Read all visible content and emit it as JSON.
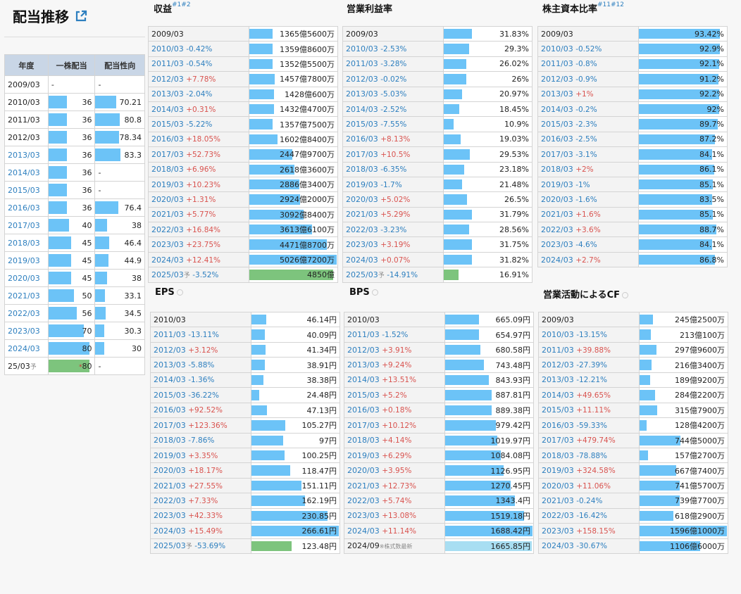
{
  "page": {
    "title": "配当推移",
    "link_icon": "external-link-icon"
  },
  "dividend": {
    "headers": [
      "年度",
      "一株配当",
      "配当性向"
    ],
    "rows": [
      {
        "year": "2009/03",
        "year_blue": false,
        "dps": "-",
        "dps_bar": 0,
        "payout": "-",
        "payout_bar": 0
      },
      {
        "year": "2010/03",
        "year_blue": false,
        "dps": "36",
        "dps_bar": 0.43,
        "payout": "70.21",
        "payout_bar": 0.84
      },
      {
        "year": "2011/03",
        "year_blue": false,
        "dps": "36",
        "dps_bar": 0.43,
        "payout": "80.8",
        "payout_bar": 0.97
      },
      {
        "year": "2012/03",
        "year_blue": false,
        "dps": "36",
        "dps_bar": 0.43,
        "payout": "78.34",
        "payout_bar": 0.94
      },
      {
        "year": "2013/03",
        "year_blue": true,
        "dps": "36",
        "dps_bar": 0.43,
        "payout": "83.3",
        "payout_bar": 1.0
      },
      {
        "year": "2014/03",
        "year_blue": true,
        "dps": "36",
        "dps_bar": 0.43,
        "payout": "-",
        "payout_bar": 0
      },
      {
        "year": "2015/03",
        "year_blue": true,
        "dps": "36",
        "dps_bar": 0.43,
        "payout": "-",
        "payout_bar": 0
      },
      {
        "year": "2016/03",
        "year_blue": true,
        "dps": "36",
        "dps_bar": 0.43,
        "payout": "76.4",
        "payout_bar": 0.92
      },
      {
        "year": "2017/03",
        "year_blue": true,
        "dps": "40",
        "dps_bar": 0.48,
        "payout": "38",
        "payout_bar": 0.46
      },
      {
        "year": "2018/03",
        "year_blue": true,
        "dps": "45",
        "dps_bar": 0.54,
        "payout": "46.4",
        "payout_bar": 0.56
      },
      {
        "year": "2019/03",
        "year_blue": true,
        "dps": "45",
        "dps_bar": 0.54,
        "payout": "44.9",
        "payout_bar": 0.54
      },
      {
        "year": "2020/03",
        "year_blue": true,
        "dps": "45",
        "dps_bar": 0.54,
        "payout": "38",
        "payout_bar": 0.46
      },
      {
        "year": "2021/03",
        "year_blue": true,
        "dps": "50",
        "dps_bar": 0.6,
        "payout": "33.1",
        "payout_bar": 0.4
      },
      {
        "year": "2022/03",
        "year_blue": true,
        "dps": "56",
        "dps_bar": 0.67,
        "payout": "34.5",
        "payout_bar": 0.41
      },
      {
        "year": "2023/03",
        "year_blue": true,
        "dps": "70",
        "dps_bar": 0.84,
        "payout": "30.3",
        "payout_bar": 0.36
      },
      {
        "year": "2024/03",
        "year_blue": true,
        "dps": "80",
        "dps_bar": 0.96,
        "payout": "30",
        "payout_bar": 0.36
      },
      {
        "year": "25/03",
        "year_blue": false,
        "forecast": "予",
        "dps": "80",
        "dps_mark": "*",
        "dps_bar": 0.96,
        "dps_green": true,
        "payout": "-",
        "payout_bar": 0
      }
    ]
  },
  "panels": [
    {
      "id": "revenue",
      "title": "収益",
      "sup": "#1#2",
      "info": false,
      "rows": [
        {
          "year": "2009/03",
          "chg": "",
          "dir": "",
          "val": "1365億5600万",
          "bar": 0.27
        },
        {
          "year": "2010/03",
          "chg": "-0.42%",
          "dir": "down",
          "val": "1359億8600万",
          "bar": 0.27
        },
        {
          "year": "2011/03",
          "chg": "-0.54%",
          "dir": "down",
          "val": "1352億5500万",
          "bar": 0.27
        },
        {
          "year": "2012/03",
          "chg": "+7.78%",
          "dir": "up",
          "val": "1457億7800万",
          "bar": 0.29
        },
        {
          "year": "2013/03",
          "chg": "-2.04%",
          "dir": "down",
          "val": "1428億600万",
          "bar": 0.28
        },
        {
          "year": "2014/03",
          "chg": "+0.31%",
          "dir": "up",
          "val": "1432億4700万",
          "bar": 0.28
        },
        {
          "year": "2015/03",
          "chg": "-5.22%",
          "dir": "down",
          "val": "1357億7500万",
          "bar": 0.27
        },
        {
          "year": "2016/03",
          "chg": "+18.05%",
          "dir": "up",
          "val": "1602億8400万",
          "bar": 0.32
        },
        {
          "year": "2017/03",
          "chg": "+52.73%",
          "dir": "up",
          "val": "2447億9700万",
          "bar": 0.49
        },
        {
          "year": "2018/03",
          "chg": "+6.96%",
          "dir": "up",
          "val": "2618億3600万",
          "bar": 0.52
        },
        {
          "year": "2019/03",
          "chg": "+10.23%",
          "dir": "up",
          "val": "2886億3400万",
          "bar": 0.57
        },
        {
          "year": "2020/03",
          "chg": "+1.31%",
          "dir": "up",
          "val": "2924億2000万",
          "bar": 0.58
        },
        {
          "year": "2021/03",
          "chg": "+5.77%",
          "dir": "up",
          "val": "3092億8400万",
          "bar": 0.62
        },
        {
          "year": "2022/03",
          "chg": "+16.84%",
          "dir": "up",
          "val": "3613億6100万",
          "bar": 0.72
        },
        {
          "year": "2023/03",
          "chg": "+23.75%",
          "dir": "up",
          "val": "4471億8700万",
          "bar": 0.89
        },
        {
          "year": "2024/03",
          "chg": "+12.41%",
          "dir": "up",
          "val": "5026億7200万",
          "bar": 1.0
        },
        {
          "year": "2025/03",
          "forecast": "予",
          "chg": "-3.52%",
          "dir": "down",
          "val": "4850億",
          "bar": 0.96,
          "green": true
        }
      ]
    },
    {
      "id": "op-margin",
      "title": "営業利益率",
      "sup": "",
      "info": false,
      "rows": [
        {
          "year": "2009/03",
          "chg": "",
          "dir": "",
          "val": "31.83%",
          "bar": 0.32
        },
        {
          "year": "2010/03",
          "chg": "-2.53%",
          "dir": "down",
          "val": "29.3%",
          "bar": 0.29
        },
        {
          "year": "2011/03",
          "chg": "-3.28%",
          "dir": "down",
          "val": "26.02%",
          "bar": 0.26
        },
        {
          "year": "2012/03",
          "chg": "-0.02%",
          "dir": "down",
          "val": "26%",
          "bar": 0.26
        },
        {
          "year": "2013/03",
          "chg": "-5.03%",
          "dir": "down",
          "val": "20.97%",
          "bar": 0.21
        },
        {
          "year": "2014/03",
          "chg": "-2.52%",
          "dir": "down",
          "val": "18.45%",
          "bar": 0.18
        },
        {
          "year": "2015/03",
          "chg": "-7.55%",
          "dir": "down",
          "val": "10.9%",
          "bar": 0.11
        },
        {
          "year": "2016/03",
          "chg": "+8.13%",
          "dir": "up",
          "val": "19.03%",
          "bar": 0.19
        },
        {
          "year": "2017/03",
          "chg": "+10.5%",
          "dir": "up",
          "val": "29.53%",
          "bar": 0.3
        },
        {
          "year": "2018/03",
          "chg": "-6.35%",
          "dir": "down",
          "val": "23.18%",
          "bar": 0.23
        },
        {
          "year": "2019/03",
          "chg": "-1.7%",
          "dir": "down",
          "val": "21.48%",
          "bar": 0.21
        },
        {
          "year": "2020/03",
          "chg": "+5.02%",
          "dir": "up",
          "val": "26.5%",
          "bar": 0.27
        },
        {
          "year": "2021/03",
          "chg": "+5.29%",
          "dir": "up",
          "val": "31.79%",
          "bar": 0.32
        },
        {
          "year": "2022/03",
          "chg": "-3.23%",
          "dir": "down",
          "val": "28.56%",
          "bar": 0.29
        },
        {
          "year": "2023/03",
          "chg": "+3.19%",
          "dir": "up",
          "val": "31.75%",
          "bar": 0.32
        },
        {
          "year": "2024/03",
          "chg": "+0.07%",
          "dir": "up",
          "val": "31.82%",
          "bar": 0.32
        },
        {
          "year": "2025/03",
          "forecast": "予",
          "chg": "-14.91%",
          "dir": "down",
          "val": "16.91%",
          "bar": 0.17,
          "green": true
        }
      ]
    },
    {
      "id": "equity-ratio",
      "title": "株主資本比率",
      "sup": "#11#12",
      "info": false,
      "rows": [
        {
          "year": "2009/03",
          "chg": "",
          "dir": "",
          "val": "93.42%",
          "bar": 0.93
        },
        {
          "year": "2010/03",
          "chg": "-0.52%",
          "dir": "down",
          "val": "92.9%",
          "bar": 0.93
        },
        {
          "year": "2011/03",
          "chg": "-0.8%",
          "dir": "down",
          "val": "92.1%",
          "bar": 0.92
        },
        {
          "year": "2012/03",
          "chg": "-0.9%",
          "dir": "down",
          "val": "91.2%",
          "bar": 0.91
        },
        {
          "year": "2013/03",
          "chg": "+1%",
          "dir": "up",
          "val": "92.2%",
          "bar": 0.92
        },
        {
          "year": "2014/03",
          "chg": "-0.2%",
          "dir": "down",
          "val": "92%",
          "bar": 0.92
        },
        {
          "year": "2015/03",
          "chg": "-2.3%",
          "dir": "down",
          "val": "89.7%",
          "bar": 0.9
        },
        {
          "year": "2016/03",
          "chg": "-2.5%",
          "dir": "down",
          "val": "87.2%",
          "bar": 0.87
        },
        {
          "year": "2017/03",
          "chg": "-3.1%",
          "dir": "down",
          "val": "84.1%",
          "bar": 0.84
        },
        {
          "year": "2018/03",
          "chg": "+2%",
          "dir": "up",
          "val": "86.1%",
          "bar": 0.86
        },
        {
          "year": "2019/03",
          "chg": "-1%",
          "dir": "down",
          "val": "85.1%",
          "bar": 0.85
        },
        {
          "year": "2020/03",
          "chg": "-1.6%",
          "dir": "down",
          "val": "83.5%",
          "bar": 0.84
        },
        {
          "year": "2021/03",
          "chg": "+1.6%",
          "dir": "up",
          "val": "85.1%",
          "bar": 0.85
        },
        {
          "year": "2022/03",
          "chg": "+3.6%",
          "dir": "up",
          "val": "88.7%",
          "bar": 0.89
        },
        {
          "year": "2023/03",
          "chg": "-4.6%",
          "dir": "down",
          "val": "84.1%",
          "bar": 0.84
        },
        {
          "year": "2024/03",
          "chg": "+2.7%",
          "dir": "up",
          "val": "86.8%",
          "bar": 0.87
        }
      ]
    },
    {
      "id": "eps",
      "title": "EPS",
      "sup": "",
      "info": true,
      "rows": [
        {
          "year": "2010/03",
          "chg": "",
          "dir": "",
          "val": "46.14円",
          "bar": 0.17
        },
        {
          "year": "2011/03",
          "chg": "-13.11%",
          "dir": "down",
          "val": "40.09円",
          "bar": 0.15
        },
        {
          "year": "2012/03",
          "chg": "+3.12%",
          "dir": "up",
          "val": "41.34円",
          "bar": 0.16
        },
        {
          "year": "2013/03",
          "chg": "-5.88%",
          "dir": "down",
          "val": "38.91円",
          "bar": 0.15
        },
        {
          "year": "2014/03",
          "chg": "-1.36%",
          "dir": "down",
          "val": "38.38円",
          "bar": 0.14
        },
        {
          "year": "2015/03",
          "chg": "-36.22%",
          "dir": "down",
          "val": "24.48円",
          "bar": 0.09
        },
        {
          "year": "2016/03",
          "chg": "+92.52%",
          "dir": "up",
          "val": "47.13円",
          "bar": 0.18
        },
        {
          "year": "2017/03",
          "chg": "+123.36%",
          "dir": "up",
          "val": "105.27円",
          "bar": 0.39
        },
        {
          "year": "2018/03",
          "chg": "-7.86%",
          "dir": "down",
          "val": "97円",
          "bar": 0.36
        },
        {
          "year": "2019/03",
          "chg": "+3.35%",
          "dir": "up",
          "val": "100.25円",
          "bar": 0.38
        },
        {
          "year": "2020/03",
          "chg": "+18.17%",
          "dir": "up",
          "val": "118.47円",
          "bar": 0.44
        },
        {
          "year": "2021/03",
          "chg": "+27.55%",
          "dir": "up",
          "val": "151.11円",
          "bar": 0.57
        },
        {
          "year": "2022/03",
          "chg": "+7.33%",
          "dir": "up",
          "val": "162.19円",
          "bar": 0.61
        },
        {
          "year": "2023/03",
          "chg": "+42.33%",
          "dir": "up",
          "val": "230.85円",
          "bar": 0.87
        },
        {
          "year": "2024/03",
          "chg": "+15.49%",
          "dir": "up",
          "val": "266.61円",
          "bar": 1.0
        },
        {
          "year": "2025/03",
          "forecast": "予",
          "chg": "-53.69%",
          "dir": "down",
          "val": "123.48円",
          "bar": 0.46,
          "green": true
        }
      ]
    },
    {
      "id": "bps",
      "title": "BPS",
      "sup": "",
      "info": true,
      "rows": [
        {
          "year": "2010/03",
          "chg": "",
          "dir": "",
          "val": "665.09円",
          "bar": 0.39
        },
        {
          "year": "2011/03",
          "chg": "-1.52%",
          "dir": "down",
          "val": "654.97円",
          "bar": 0.39
        },
        {
          "year": "2012/03",
          "chg": "+3.91%",
          "dir": "up",
          "val": "680.58円",
          "bar": 0.4
        },
        {
          "year": "2013/03",
          "chg": "+9.24%",
          "dir": "up",
          "val": "743.48円",
          "bar": 0.44
        },
        {
          "year": "2014/03",
          "chg": "+13.51%",
          "dir": "up",
          "val": "843.93円",
          "bar": 0.5
        },
        {
          "year": "2015/03",
          "chg": "+5.2%",
          "dir": "up",
          "val": "887.81円",
          "bar": 0.53
        },
        {
          "year": "2016/03",
          "chg": "+0.18%",
          "dir": "up",
          "val": "889.38円",
          "bar": 0.53
        },
        {
          "year": "2017/03",
          "chg": "+10.12%",
          "dir": "up",
          "val": "979.42円",
          "bar": 0.58
        },
        {
          "year": "2018/03",
          "chg": "+4.14%",
          "dir": "up",
          "val": "1019.97円",
          "bar": 0.6
        },
        {
          "year": "2019/03",
          "chg": "+6.29%",
          "dir": "up",
          "val": "1084.08円",
          "bar": 0.64
        },
        {
          "year": "2020/03",
          "chg": "+3.95%",
          "dir": "up",
          "val": "1126.95円",
          "bar": 0.67
        },
        {
          "year": "2021/03",
          "chg": "+12.73%",
          "dir": "up",
          "val": "1270.45円",
          "bar": 0.75
        },
        {
          "year": "2022/03",
          "chg": "+5.74%",
          "dir": "up",
          "val": "1343.4円",
          "bar": 0.8
        },
        {
          "year": "2023/03",
          "chg": "+13.08%",
          "dir": "up",
          "val": "1519.18円",
          "bar": 0.9
        },
        {
          "year": "2024/03",
          "chg": "+11.14%",
          "dir": "up",
          "val": "1688.42円",
          "bar": 1.0
        },
        {
          "year": "2024/09",
          "note": "※株式数最新",
          "chg": "",
          "dir": "",
          "val": "1665.85円",
          "bar": 0.99,
          "light": true
        }
      ]
    },
    {
      "id": "opcf",
      "title": "営業活動によるCF",
      "sup": "",
      "info": true,
      "rows": [
        {
          "year": "2009/03",
          "chg": "",
          "dir": "",
          "val": "245億2500万",
          "bar": 0.15
        },
        {
          "year": "2010/03",
          "chg": "-13.15%",
          "dir": "down",
          "val": "213億100万",
          "bar": 0.13
        },
        {
          "year": "2011/03",
          "chg": "+39.88%",
          "dir": "up",
          "val": "297億9600万",
          "bar": 0.19
        },
        {
          "year": "2012/03",
          "chg": "-27.39%",
          "dir": "down",
          "val": "216億3400万",
          "bar": 0.14
        },
        {
          "year": "2013/03",
          "chg": "-12.21%",
          "dir": "down",
          "val": "189億9200万",
          "bar": 0.12
        },
        {
          "year": "2014/03",
          "chg": "+49.65%",
          "dir": "up",
          "val": "284億2200万",
          "bar": 0.18
        },
        {
          "year": "2015/03",
          "chg": "+11.11%",
          "dir": "up",
          "val": "315億7900万",
          "bar": 0.2
        },
        {
          "year": "2016/03",
          "chg": "-59.33%",
          "dir": "down",
          "val": "128億4200万",
          "bar": 0.08
        },
        {
          "year": "2017/03",
          "chg": "+479.74%",
          "dir": "up",
          "val": "744億5000万",
          "bar": 0.47
        },
        {
          "year": "2018/03",
          "chg": "-78.88%",
          "dir": "down",
          "val": "157億2700万",
          "bar": 0.1
        },
        {
          "year": "2019/03",
          "chg": "+324.58%",
          "dir": "up",
          "val": "667億7400万",
          "bar": 0.42
        },
        {
          "year": "2020/03",
          "chg": "+11.06%",
          "dir": "up",
          "val": "741億5700万",
          "bar": 0.46
        },
        {
          "year": "2021/03",
          "chg": "-0.24%",
          "dir": "down",
          "val": "739億7700万",
          "bar": 0.46
        },
        {
          "year": "2022/03",
          "chg": "-16.42%",
          "dir": "down",
          "val": "618億2900万",
          "bar": 0.39
        },
        {
          "year": "2023/03",
          "chg": "+158.15%",
          "dir": "up",
          "val": "1596億1000万",
          "bar": 1.0
        },
        {
          "year": "2024/03",
          "chg": "-30.67%",
          "dir": "down",
          "val": "1106億6000万",
          "bar": 0.69
        }
      ]
    }
  ]
}
